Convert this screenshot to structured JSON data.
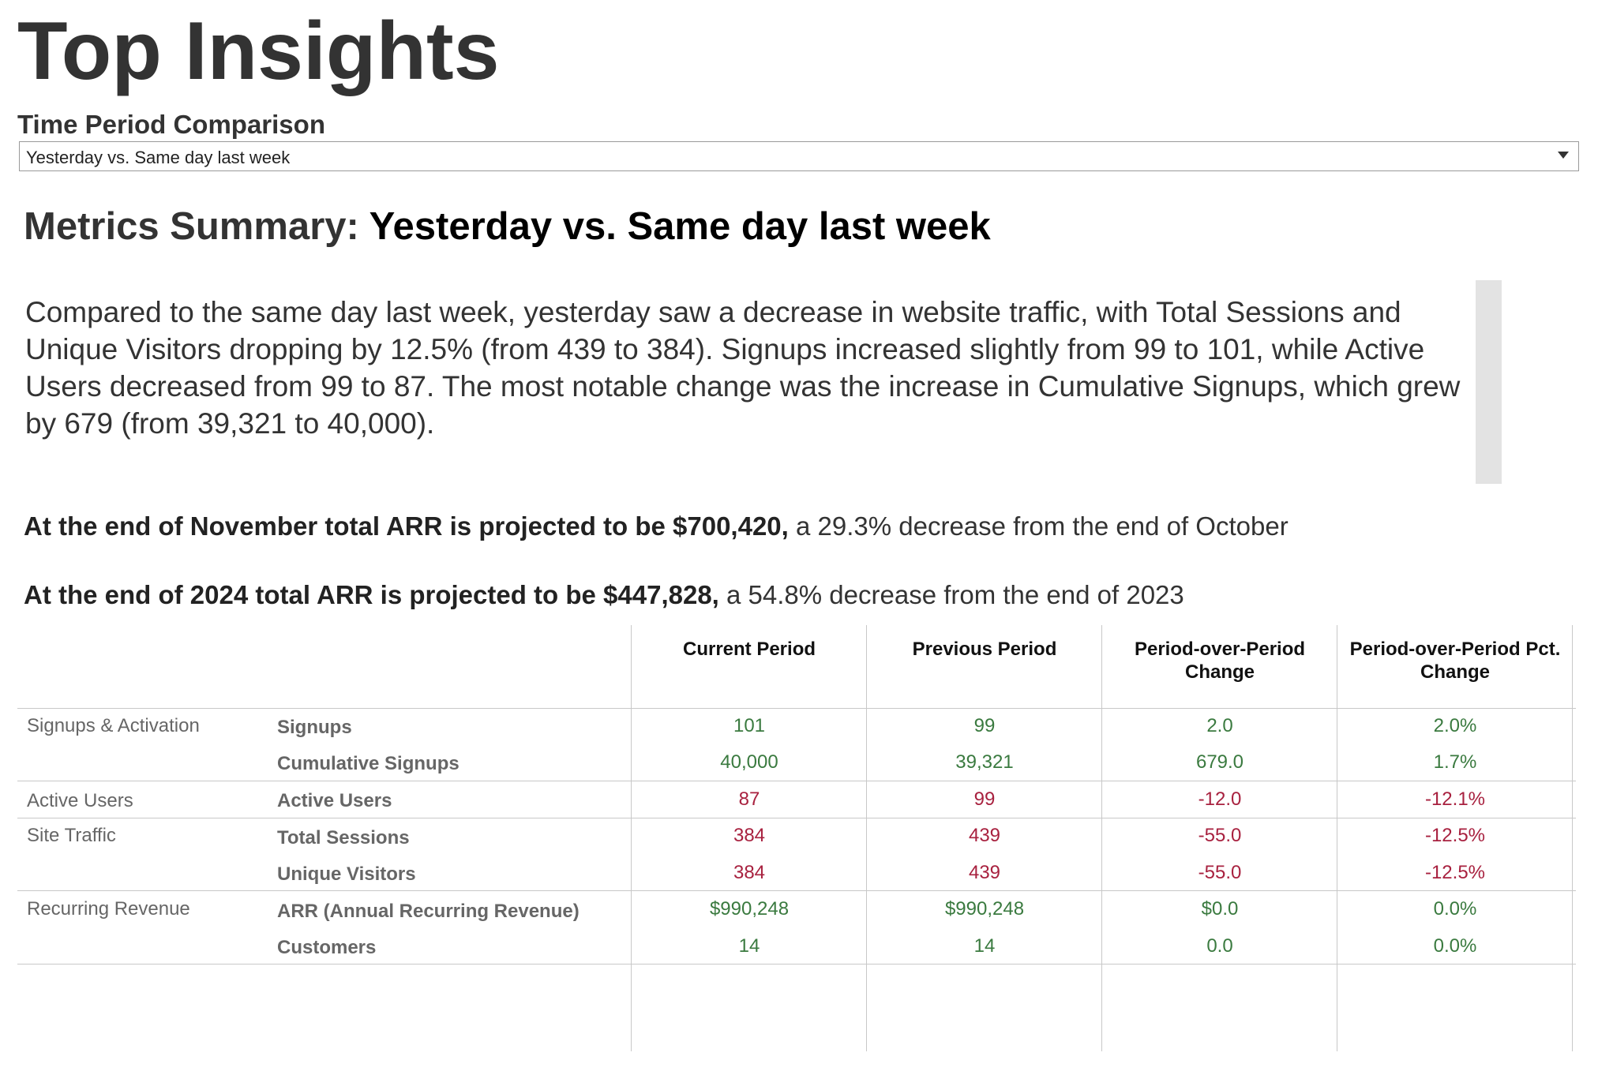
{
  "page_title": "Top Insights",
  "filter": {
    "label": "Time Period Comparison",
    "selected": "Yesterday vs. Same day last week"
  },
  "summary": {
    "heading_prefix": "Metrics Summary: ",
    "heading_period": "Yesterday vs. Same day last week",
    "narrative": "Compared to the same day last week, yesterday saw a decrease in website traffic, with Total Sessions and Unique Visitors dropping by 12.5% (from 439 to 384).  Signups increased slightly from 99 to 101, while Active Users decreased from 99 to 87.  The most notable change was the increase in Cumulative Signups, which grew by 679 (from 39,321 to 40,000)."
  },
  "projections": [
    {
      "bold": "At the end of November total ARR is projected to be $700,420,",
      "rest": " a 29.3% decrease from the end of October"
    },
    {
      "bold": "At the end of 2024 total ARR is projected to be $447,828,",
      "rest": " a 54.8% decrease from the end of 2023"
    }
  ],
  "table": {
    "columns": [
      "Current Period",
      "Previous Period",
      "Period-over-Period Change",
      "Period-over-Period Pct. Change"
    ],
    "groups": [
      "Signups & Activation",
      "Active Users",
      "Site Traffic",
      "Recurring Revenue"
    ],
    "rows": [
      {
        "metric": "Signups",
        "current": "101",
        "previous": "99",
        "change": "2.0",
        "pct": "2.0%",
        "trend": "positive"
      },
      {
        "metric": "Cumulative Signups",
        "current": "40,000",
        "previous": "39,321",
        "change": "679.0",
        "pct": "1.7%",
        "trend": "positive"
      },
      {
        "metric": "Active Users",
        "current": "87",
        "previous": "99",
        "change": "-12.0",
        "pct": "-12.1%",
        "trend": "negative"
      },
      {
        "metric": "Total Sessions",
        "current": "384",
        "previous": "439",
        "change": "-55.0",
        "pct": "-12.5%",
        "trend": "negative"
      },
      {
        "metric": "Unique Visitors",
        "current": "384",
        "previous": "439",
        "change": "-55.0",
        "pct": "-12.5%",
        "trend": "negative"
      },
      {
        "metric": "ARR (Annual Recurring Revenue)",
        "current": "$990,248",
        "previous": "$990,248",
        "change": "$0.0",
        "pct": "0.0%",
        "trend": "positive"
      },
      {
        "metric": "Customers",
        "current": "14",
        "previous": "14",
        "change": "0.0",
        "pct": "0.0%",
        "trend": "positive"
      }
    ]
  },
  "colors": {
    "positive": "#3a7a3f",
    "negative": "#a8213f"
  }
}
